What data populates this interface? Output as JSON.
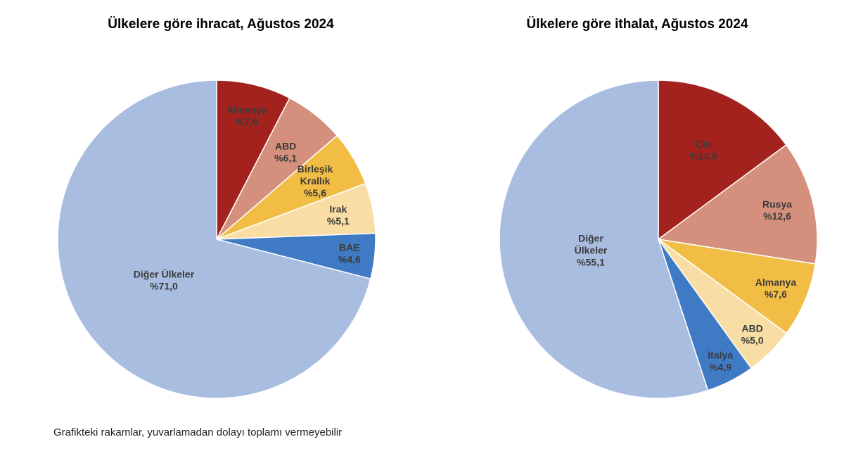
{
  "chart_data": [
    {
      "type": "pie",
      "title": "Ülkelere göre ihracat, Ağustos 2024",
      "slices": [
        {
          "label": [
            "Almanya"
          ],
          "value_text": "%7,6",
          "value": 7.6,
          "color": "#a3221d"
        },
        {
          "label": [
            "ABD"
          ],
          "value_text": "%6,1",
          "value": 6.1,
          "color": "#d4907c"
        },
        {
          "label": [
            "Birleşik",
            "Krallık"
          ],
          "value_text": "%5,6",
          "value": 5.6,
          "color": "#f2bd45"
        },
        {
          "label": [
            "Irak"
          ],
          "value_text": "%5,1",
          "value": 5.1,
          "color": "#f8dea5"
        },
        {
          "label": [
            "BAE"
          ],
          "value_text": "%4,6",
          "value": 4.6,
          "color": "#3f7bc4"
        },
        {
          "label": [
            "Diğer Ülkeler"
          ],
          "value_text": "%71,0",
          "value": 71.0,
          "color": "#a8bde0"
        }
      ]
    },
    {
      "type": "pie",
      "title": "Ülkelere göre ithalat, Ağustos 2024",
      "slices": [
        {
          "label": [
            "Çin"
          ],
          "value_text": "%14,9",
          "value": 14.9,
          "color": "#a3221d"
        },
        {
          "label": [
            "Rusya"
          ],
          "value_text": "%12,6",
          "value": 12.6,
          "color": "#d4907c"
        },
        {
          "label": [
            "Almanya"
          ],
          "value_text": "%7,6",
          "value": 7.6,
          "color": "#f2bd45"
        },
        {
          "label": [
            "ABD"
          ],
          "value_text": "%5,0",
          "value": 5.0,
          "color": "#f8dea5"
        },
        {
          "label": [
            "İtalya"
          ],
          "value_text": "%4,9",
          "value": 4.9,
          "color": "#3f7bc4"
        },
        {
          "label": [
            "Diğer",
            "Ülkeler"
          ],
          "value_text": "%55,1",
          "value": 55.1,
          "color": "#a8bde0"
        }
      ]
    }
  ],
  "footnote": "Grafikteki rakamlar, yuvarlamadan dolayı toplamı vermeyebilir"
}
